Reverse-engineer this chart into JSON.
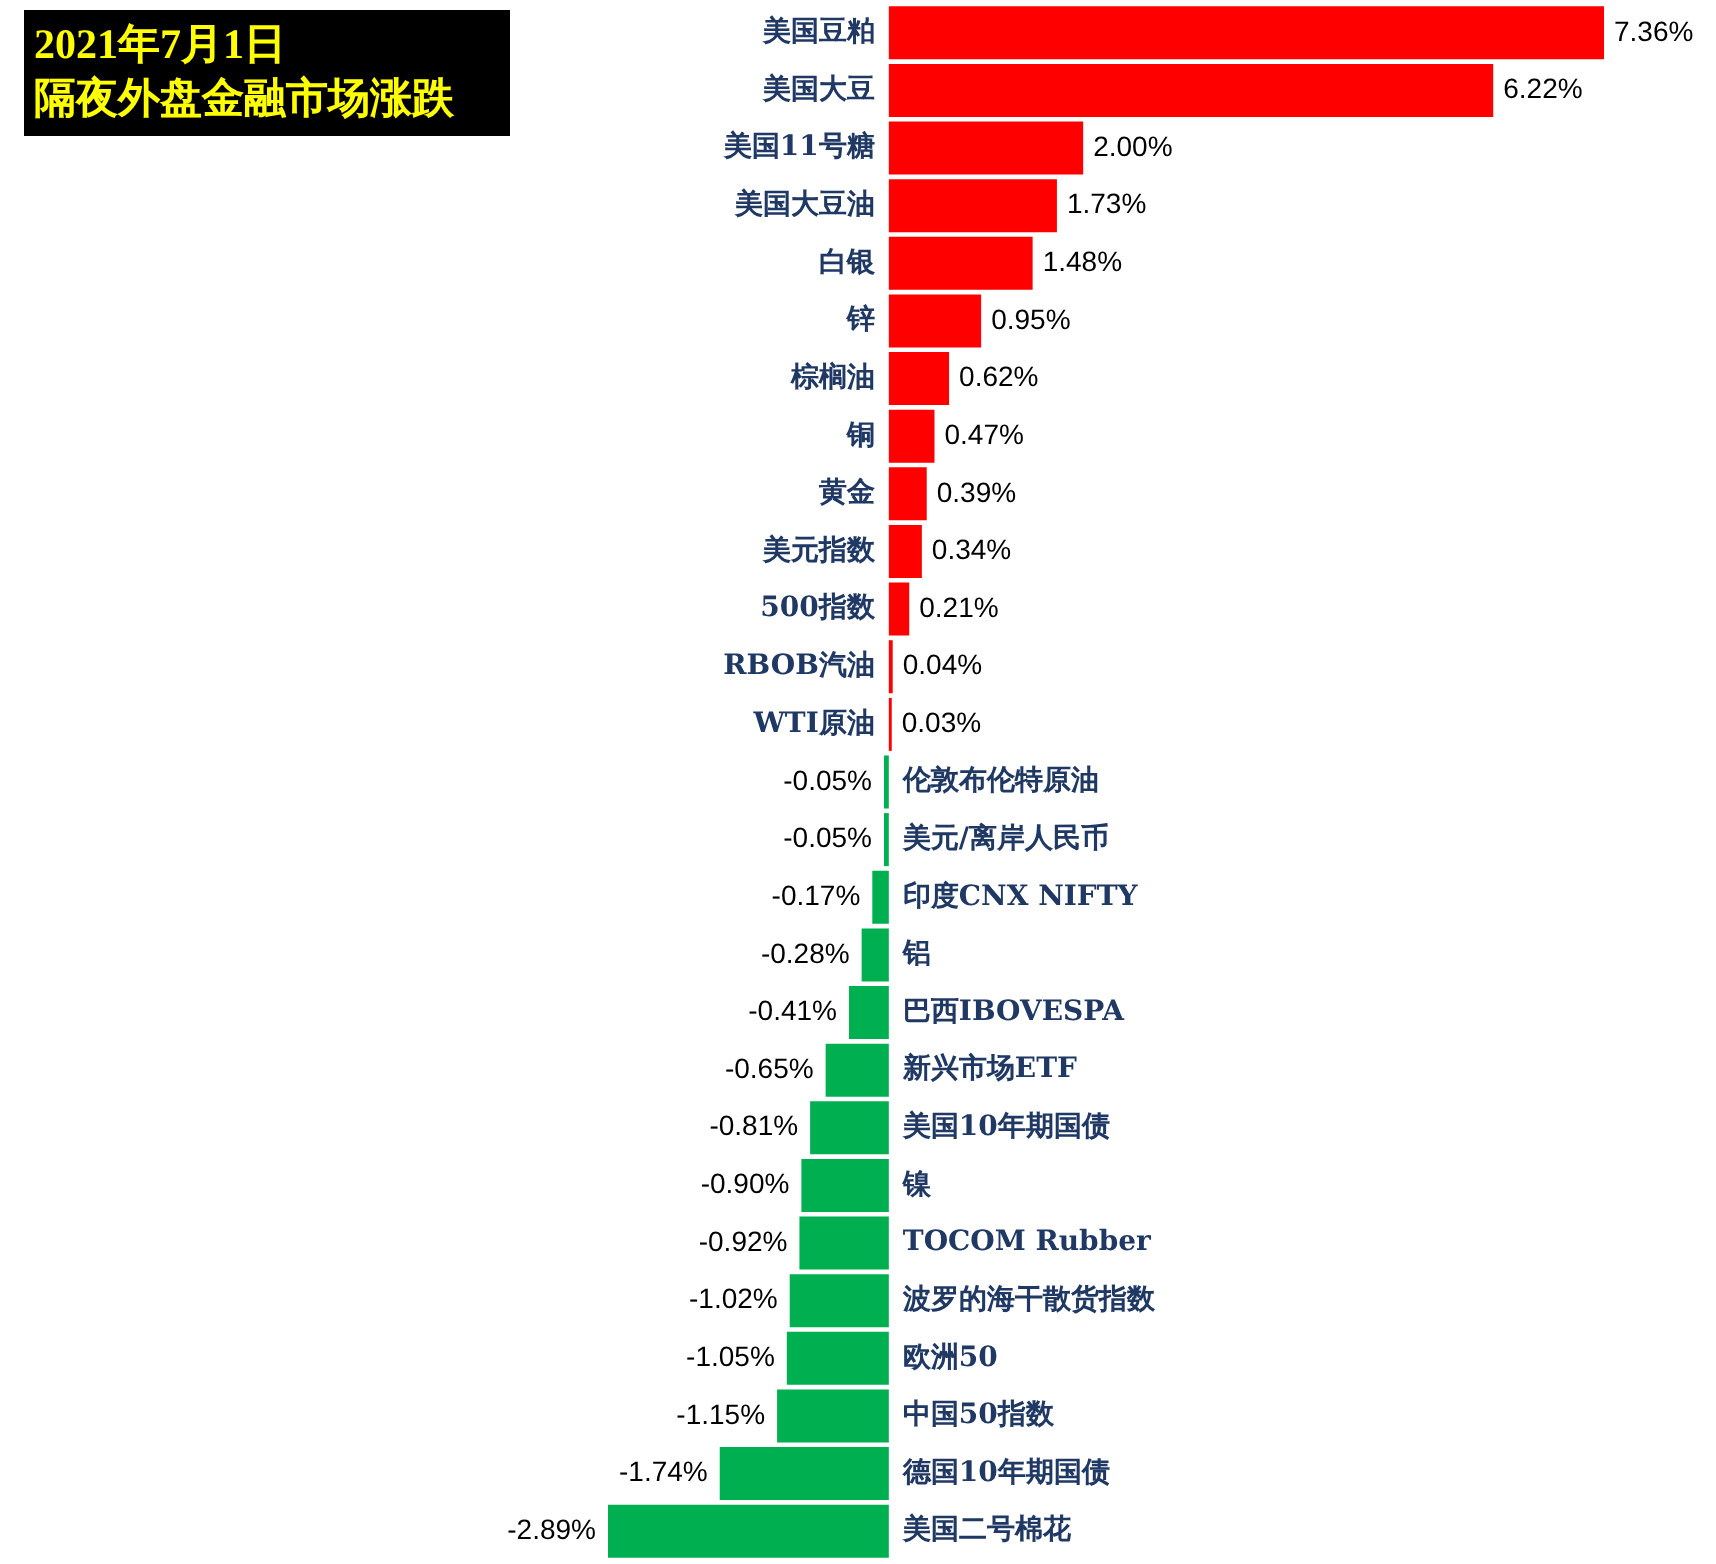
{
  "chart_data": {
    "type": "bar",
    "orientation": "horizontal",
    "title": "2021年7月1日",
    "subtitle": "隔夜外盘金融市场涨跌",
    "categories": [
      "美国豆粕",
      "美国大豆",
      "美国11号糖",
      "美国大豆油",
      "白银",
      "锌",
      "棕榈油",
      "铜",
      "黄金",
      "美元指数",
      "500指数",
      "RBOB汽油",
      "WTI原油",
      "伦敦布伦特原油",
      "美元/离岸人民币",
      "印度CNX NIFTY",
      "铝",
      "巴西IBOVESPA",
      "新兴市场ETF",
      "美国10年期国债",
      "镍",
      "TOCOM Rubber",
      "波罗的海干散货指数",
      "欧洲50",
      "中国50指数",
      "德国10年期国债",
      "美国二号棉花"
    ],
    "values": [
      7.36,
      6.22,
      2.0,
      1.73,
      1.48,
      0.95,
      0.62,
      0.47,
      0.39,
      0.34,
      0.21,
      0.04,
      0.03,
      -0.05,
      -0.05,
      -0.17,
      -0.28,
      -0.41,
      -0.65,
      -0.81,
      -0.9,
      -0.92,
      -1.02,
      -1.05,
      -1.15,
      -1.74,
      -2.89
    ],
    "value_labels": [
      "7.36%",
      "6.22%",
      "2.00%",
      "1.73%",
      "1.48%",
      "0.95%",
      "0.62%",
      "0.47%",
      "0.39%",
      "0.34%",
      "0.21%",
      "0.04%",
      "0.03%",
      "-0.05%",
      "-0.05%",
      "-0.17%",
      "-0.28%",
      "-0.41%",
      "-0.65%",
      "-0.81%",
      "-0.90%",
      "-0.92%",
      "-1.02%",
      "-1.05%",
      "-1.15%",
      "-1.74%",
      "-2.89%"
    ],
    "colors": [
      "#ff0000",
      "#ff0000",
      "#ff0000",
      "#ff0000",
      "#ff0000",
      "#ff0000",
      "#ff0000",
      "#ff0000",
      "#ff0000",
      "#ff0000",
      "#ff0000",
      "#ff0000",
      "#ff0000",
      "#00b050",
      "#00b050",
      "#00b050",
      "#00b050",
      "#00b050",
      "#00b050",
      "#00b050",
      "#00b050",
      "#00b050",
      "#00b050",
      "#00b050",
      "#00b050",
      "#00b050",
      "#00b050"
    ]
  }
}
